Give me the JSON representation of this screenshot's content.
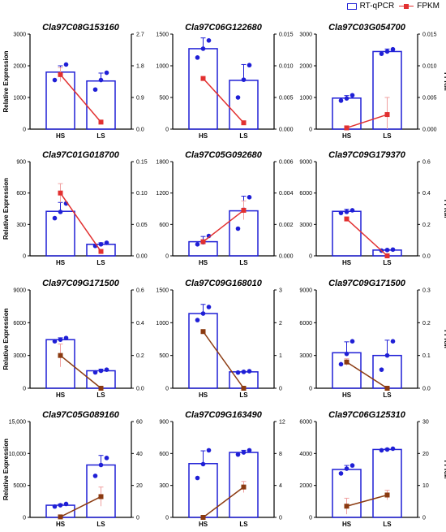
{
  "legend": {
    "bar_label": "RT-qPCR",
    "line_label": "FPKM"
  },
  "colors": {
    "bar": "#1f1fd6",
    "line_red": "#e23030",
    "line_brown": "#8b3a10",
    "error_red": "#f0a0a0"
  },
  "chart_data": [
    {
      "type": "bar",
      "title": "Cla97C08G153160",
      "categories": [
        "HS",
        "LS"
      ],
      "ylabel": "Relative Expression",
      "y2label": "",
      "ylim": [
        0,
        3000
      ],
      "yticks": [
        0,
        1000,
        2000,
        3000
      ],
      "y2lim": [
        0,
        2.7
      ],
      "y2ticks": [
        "0.0",
        "0.9",
        "1.8",
        "2.7"
      ],
      "bars": [
        1800,
        1520
      ],
      "bar_err": [
        200,
        250
      ],
      "dots": [
        [
          1550,
          1720,
          2040
        ],
        [
          1250,
          1550,
          1780
        ]
      ],
      "line": [
        1.55,
        0.2
      ],
      "line_err": [
        0.2,
        0.05
      ],
      "line_color": "red"
    },
    {
      "type": "bar",
      "title": "Cla97C06G122680",
      "categories": [
        "HS",
        "LS"
      ],
      "ylabel": "",
      "y2label": "",
      "ylim": [
        0,
        1500
      ],
      "yticks": [
        0,
        500,
        1000,
        1500
      ],
      "y2lim": [
        0,
        0.015
      ],
      "y2ticks": [
        "0.000",
        "0.005",
        "0.010",
        "0.015"
      ],
      "bars": [
        1270,
        770
      ],
      "bar_err": [
        170,
        250
      ],
      "dots": [
        [
          1130,
          1270,
          1400
        ],
        [
          500,
          780,
          1010
        ]
      ],
      "line": [
        0.008,
        0.001
      ],
      "line_err": [
        0.0,
        0.0
      ],
      "line_color": "red"
    },
    {
      "type": "bar",
      "title": "Cla97C03G054700",
      "categories": [
        "HS",
        "LS"
      ],
      "ylabel": "",
      "y2label": "FPKM",
      "ylim": [
        0,
        3000
      ],
      "yticks": [
        0,
        1000,
        2000,
        3000
      ],
      "y2lim": [
        0,
        0.015
      ],
      "y2ticks": [
        "0.000",
        "0.005",
        "0.010",
        "0.015"
      ],
      "bars": [
        980,
        2450
      ],
      "bar_err": [
        80,
        80
      ],
      "dots": [
        [
          900,
          970,
          1070
        ],
        [
          2380,
          2450,
          2520
        ]
      ],
      "line": [
        0.0002,
        0.0023
      ],
      "line_err": [
        0.0,
        0.0027
      ],
      "line_color": "red"
    },
    {
      "type": "bar",
      "title": "Cla97C01G018700",
      "categories": [
        "HS",
        "LS"
      ],
      "ylabel": "Relative Expression",
      "y2label": "",
      "ylim": [
        0,
        900
      ],
      "yticks": [
        0,
        300,
        600,
        900
      ],
      "y2lim": [
        0,
        0.15
      ],
      "y2ticks": [
        "0.00",
        "0.05",
        "0.10",
        "0.15"
      ],
      "bars": [
        425,
        110
      ],
      "bar_err": [
        85,
        15
      ],
      "dots": [
        [
          360,
          420,
          500
        ],
        [
          95,
          110,
          125
        ]
      ],
      "line": [
        0.1,
        0.007
      ],
      "line_err": [
        0.015,
        0.0
      ],
      "line_color": "red"
    },
    {
      "type": "bar",
      "title": "Cla97C05G092680",
      "categories": [
        "HS",
        "LS"
      ],
      "ylabel": "",
      "y2label": "",
      "ylim": [
        0,
        1800
      ],
      "yticks": [
        0,
        600,
        1200,
        1800
      ],
      "y2lim": [
        0,
        0.006
      ],
      "y2ticks": [
        "0.000",
        "0.002",
        "0.004",
        "0.006"
      ],
      "bars": [
        270,
        860
      ],
      "bar_err": [
        100,
        280
      ],
      "dots": [
        [
          220,
          260,
          380
        ],
        [
          520,
          880,
          1120
        ]
      ],
      "line": [
        0.0009,
        0.0029
      ],
      "line_err": [
        0.0,
        0.0006
      ],
      "line_color": "red"
    },
    {
      "type": "bar",
      "title": "Cla97C09G179370",
      "categories": [
        "HS",
        "LS"
      ],
      "ylabel": "",
      "y2label": "FPKM",
      "ylim": [
        0,
        9000
      ],
      "yticks": [
        0,
        3000,
        6000,
        9000
      ],
      "y2lim": [
        0,
        0.6
      ],
      "y2ticks": [
        "0.0",
        "0.2",
        "0.4",
        "0.6"
      ],
      "bars": [
        4250,
        550
      ],
      "bar_err": [
        200,
        60
      ],
      "dots": [
        [
          4100,
          4200,
          4350
        ],
        [
          500,
          560,
          600
        ]
      ],
      "line": [
        0.235,
        0.0
      ],
      "line_err": [
        0.0,
        0.0
      ],
      "line_color": "red"
    },
    {
      "type": "bar",
      "title": "Cla97C09G171500",
      "categories": [
        "HS",
        "LS"
      ],
      "ylabel": "Relative Expression",
      "y2label": "",
      "ylim": [
        0,
        9000
      ],
      "yticks": [
        0,
        3000,
        6000,
        9000
      ],
      "y2lim": [
        0,
        0.6
      ],
      "y2ticks": [
        "0.0",
        "0.2",
        "0.4",
        "0.6"
      ],
      "bars": [
        4450,
        1600
      ],
      "bar_err": [
        170,
        150
      ],
      "dots": [
        [
          4300,
          4450,
          4600
        ],
        [
          1450,
          1600,
          1700
        ]
      ],
      "line": [
        0.2,
        0.0
      ],
      "line_err": [
        0.07,
        0.0
      ],
      "line_color": "brown"
    },
    {
      "type": "bar",
      "title": "Cla97C09G168010",
      "categories": [
        "HS",
        "LS"
      ],
      "ylabel": "",
      "y2label": "",
      "ylim": [
        0,
        1500
      ],
      "yticks": [
        0,
        500,
        1000,
        1500
      ],
      "y2lim": [
        0,
        3
      ],
      "y2ticks": [
        "0",
        "1",
        "2",
        "3"
      ],
      "bars": [
        1140,
        250
      ],
      "bar_err": [
        140,
        10
      ],
      "dots": [
        [
          1040,
          1140,
          1240
        ],
        [
          240,
          250,
          260
        ]
      ],
      "line": [
        1.73,
        0.0
      ],
      "line_err": [
        0.0,
        0.0
      ],
      "line_color": "brown"
    },
    {
      "type": "bar",
      "title": "Cla97C09G171500",
      "categories": [
        "HS",
        "LS"
      ],
      "ylabel": "",
      "y2label": "FPKM",
      "ylim": [
        0,
        9000
      ],
      "yticks": [
        0,
        3000,
        6000,
        9000
      ],
      "y2lim": [
        0,
        0.3
      ],
      "y2ticks": [
        "0.0",
        "0.1",
        "0.2",
        "0.3"
      ],
      "bars": [
        3250,
        3000
      ],
      "bar_err": [
        1000,
        1400
      ],
      "dots": [
        [
          2200,
          3150,
          4300
        ],
        [
          1700,
          3000,
          4300
        ]
      ],
      "line": [
        0.08,
        0.0
      ],
      "line_err": [
        0.01,
        0.0
      ],
      "line_color": "brown"
    },
    {
      "type": "bar",
      "title": "Cla97C05G089160",
      "categories": [
        "HS",
        "LS"
      ],
      "ylabel": "Relative Expression",
      "y2label": "",
      "ylim": [
        0,
        15000
      ],
      "yticks": [
        "0",
        "5000",
        "10,000",
        "15,000"
      ],
      "y2lim": [
        0,
        60
      ],
      "y2ticks": [
        "0",
        "20",
        "40",
        "60"
      ],
      "bars": [
        1900,
        8200
      ],
      "bar_err": [
        200,
        1500
      ],
      "dots": [
        [
          1700,
          1900,
          2100
        ],
        [
          6500,
          8200,
          9300
        ]
      ],
      "line": [
        0.3,
        13
      ],
      "line_err": [
        0.0,
        6
      ],
      "line_color": "brown"
    },
    {
      "type": "bar",
      "title": "Cla97C09G163490",
      "categories": [
        "HS",
        "LS"
      ],
      "ylabel": "",
      "y2label": "",
      "ylim": [
        0,
        900
      ],
      "yticks": [
        0,
        300,
        600,
        900
      ],
      "y2lim": [
        0,
        12
      ],
      "y2ticks": [
        "0",
        "4",
        "8",
        "12"
      ],
      "bars": [
        505,
        610
      ],
      "bar_err": [
        120,
        20
      ],
      "dots": [
        [
          370,
          500,
          630
        ],
        [
          590,
          610,
          630
        ]
      ],
      "line": [
        0.0,
        3.8
      ],
      "line_err": [
        0.0,
        0.7
      ],
      "line_color": "brown"
    },
    {
      "type": "bar",
      "title": "Cla97C06G125310",
      "categories": [
        "HS",
        "LS"
      ],
      "ylabel": "",
      "y2label": "FPKM",
      "ylim": [
        0,
        6000
      ],
      "yticks": [
        0,
        2000,
        4000,
        6000
      ],
      "y2lim": [
        0,
        30
      ],
      "y2ticks": [
        "0",
        "10",
        "20",
        "30"
      ],
      "bars": [
        3000,
        4250
      ],
      "bar_err": [
        250,
        60
      ],
      "dots": [
        [
          2750,
          3050,
          3250
        ],
        [
          4200,
          4250,
          4300
        ]
      ],
      "line": [
        3.5,
        7
      ],
      "line_err": [
        2.5,
        1.5
      ],
      "line_color": "brown"
    }
  ]
}
